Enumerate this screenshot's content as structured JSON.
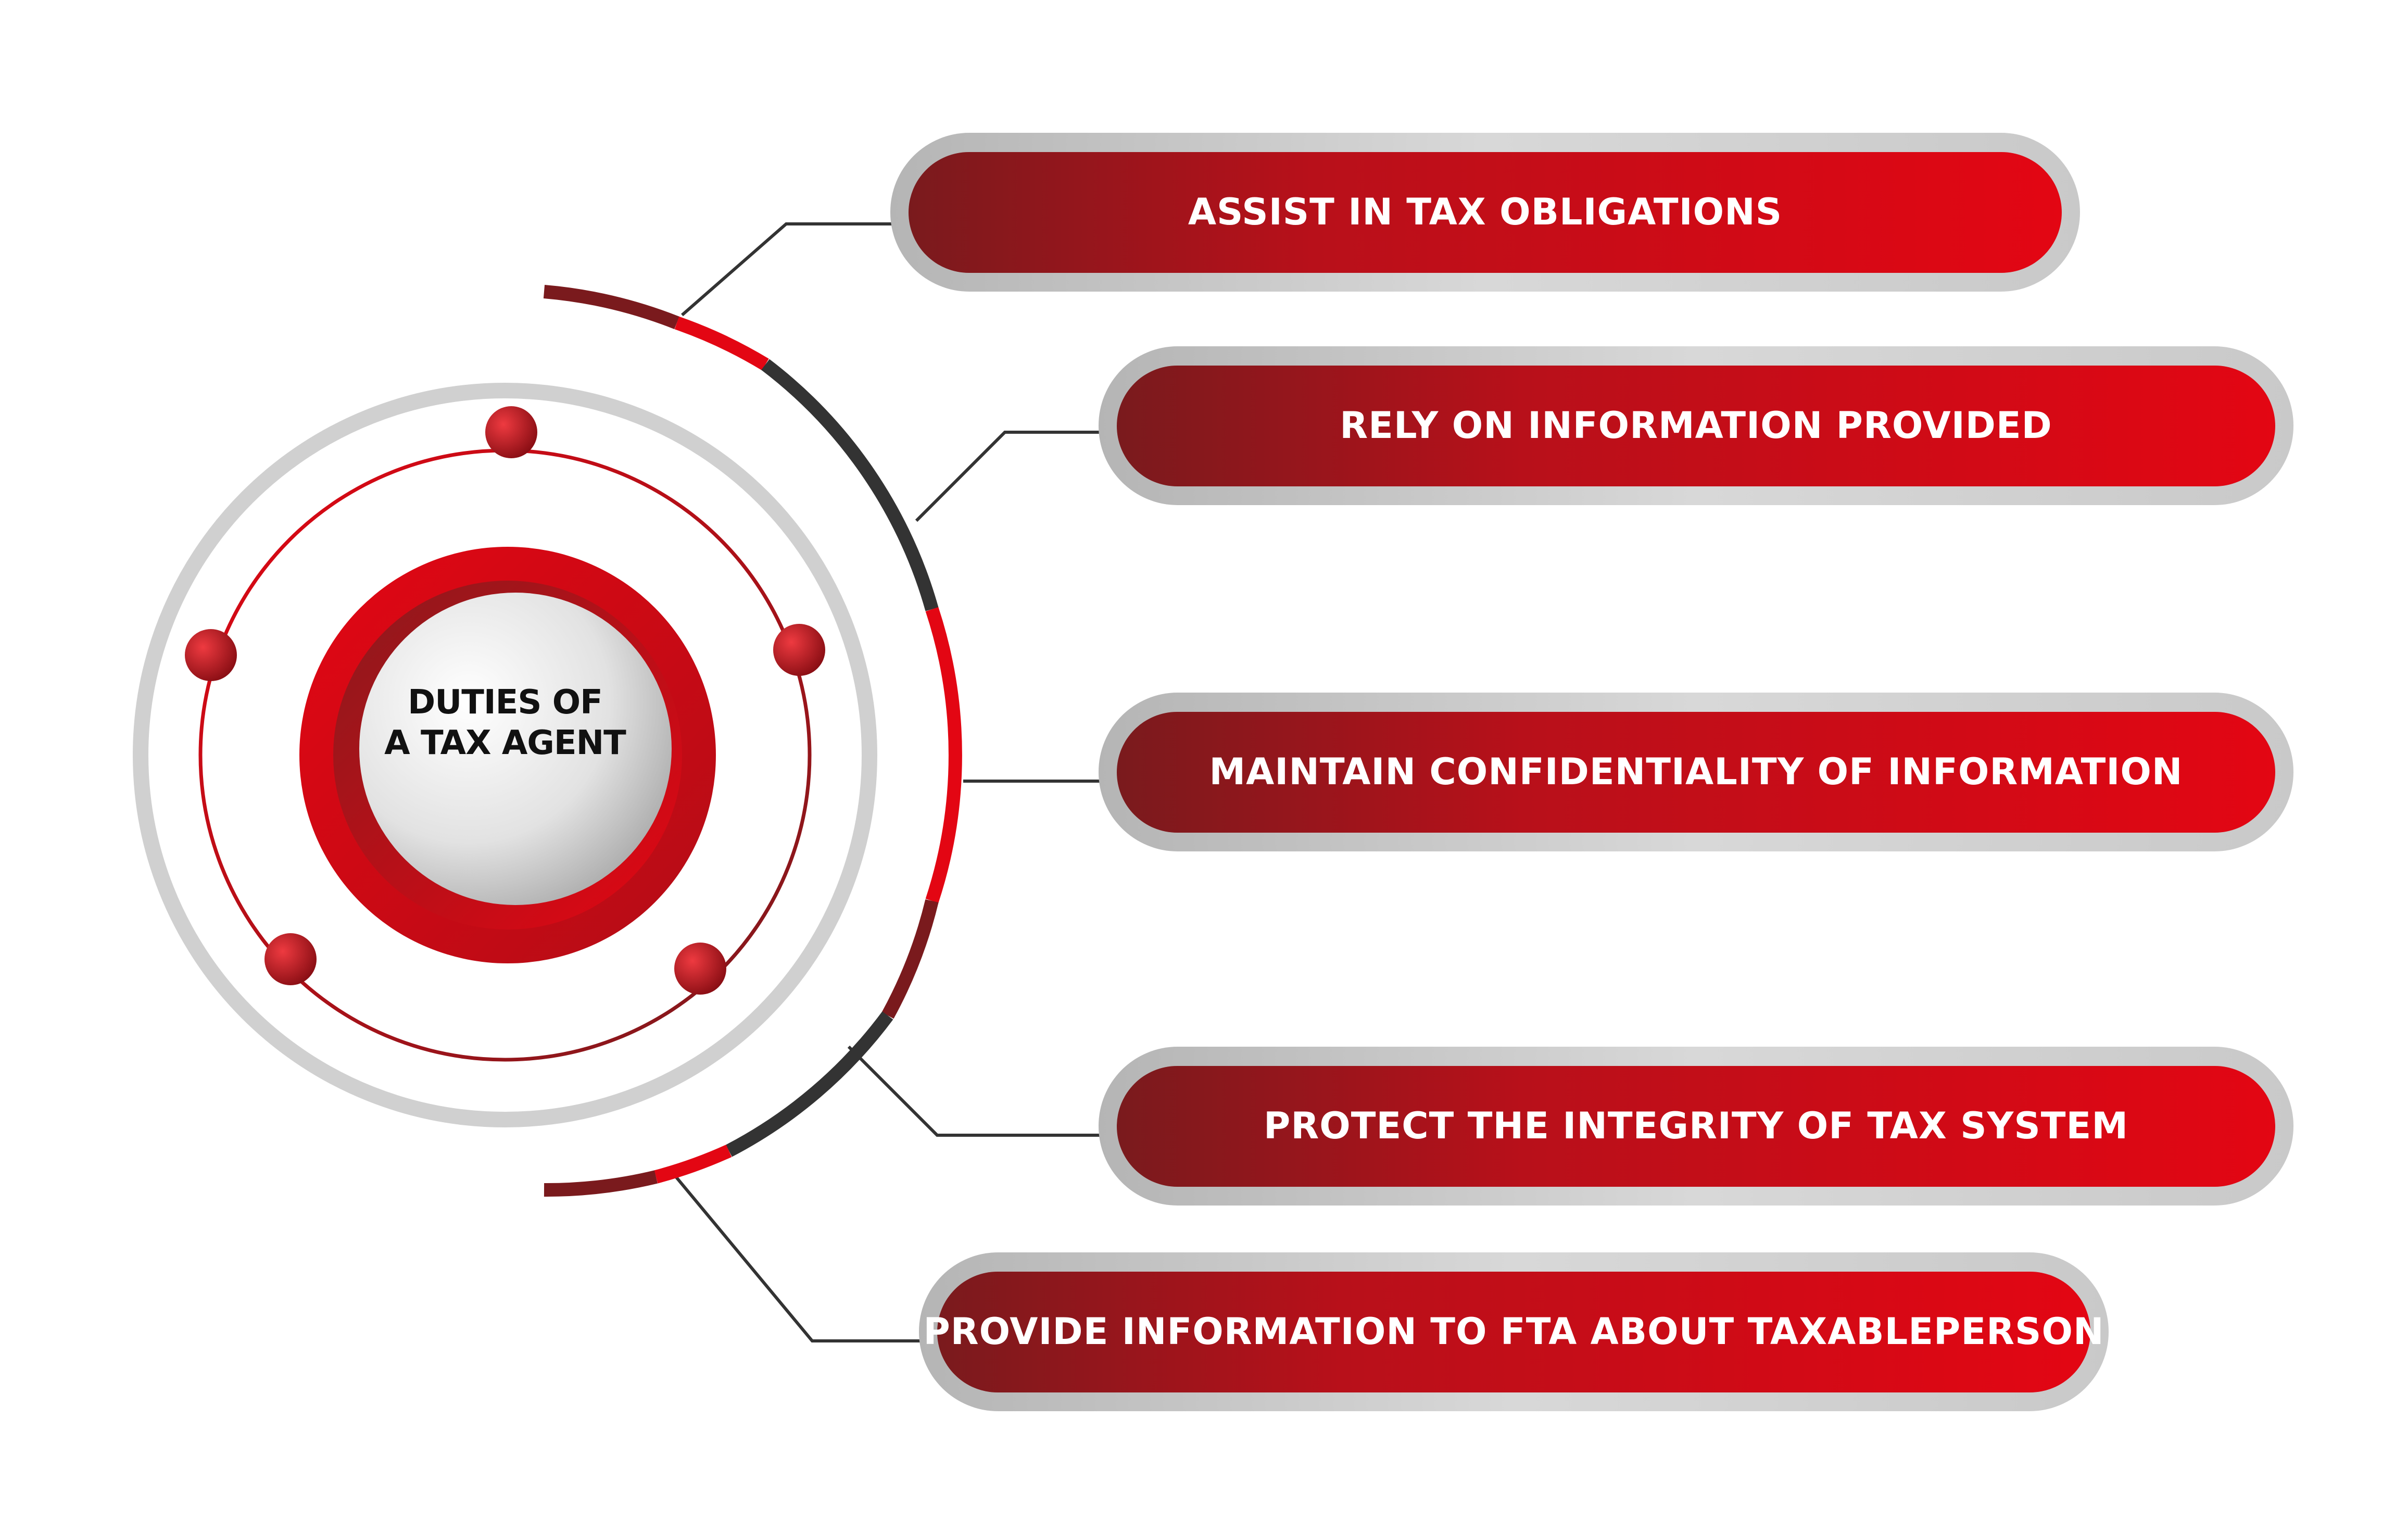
{
  "center": {
    "title_line1": "DUTIES OF",
    "title_line2": "A TAX AGENT"
  },
  "items": [
    {
      "label": "ASSIST IN TAX OBLIGATIONS"
    },
    {
      "label": "RELY ON INFORMATION PROVIDED"
    },
    {
      "label": "MAINTAIN CONFIDENTIALITY OF INFORMATION"
    },
    {
      "label": "PROTECT THE INTEGRITY OF TAX SYSTEM"
    },
    {
      "label": "PROVIDE INFORMATION TO FTA ABOUT TAXABLEPERSON"
    }
  ],
  "colors": {
    "red": "#e30613",
    "dark_red": "#7a1a1d",
    "grey": "#cfcfcf",
    "black": "#333333"
  }
}
